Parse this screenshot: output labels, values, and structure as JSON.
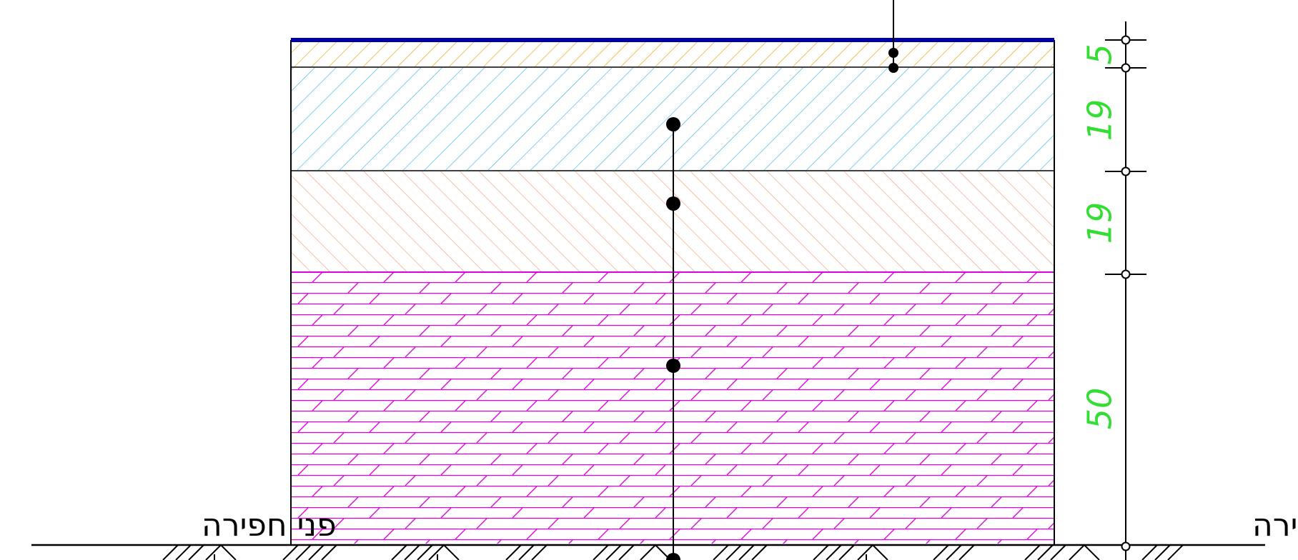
{
  "colors": {
    "background": "#ffffff",
    "outline": "#000000",
    "top_surface": "#0000a8",
    "layer_1_hatch": "#e8a000",
    "layer_2_hatch": "#3cb4e6",
    "layer_3_hatch": "#f0a080",
    "layer_4_hatch": "#e000e0",
    "dimension_text": "#33dd33"
  },
  "layers": [
    {
      "name": "layer-1",
      "thickness": "5",
      "hatch": "diagonal-backslash"
    },
    {
      "name": "layer-2",
      "thickness": "19",
      "hatch": "diagonal-backslash"
    },
    {
      "name": "layer-3",
      "thickness": "19",
      "hatch": "diagonal-slash"
    },
    {
      "name": "layer-4",
      "thickness": "50",
      "hatch": "brick"
    }
  ],
  "ground": {
    "left_label": "פני חפירה",
    "right_label": "פני חפירה"
  }
}
